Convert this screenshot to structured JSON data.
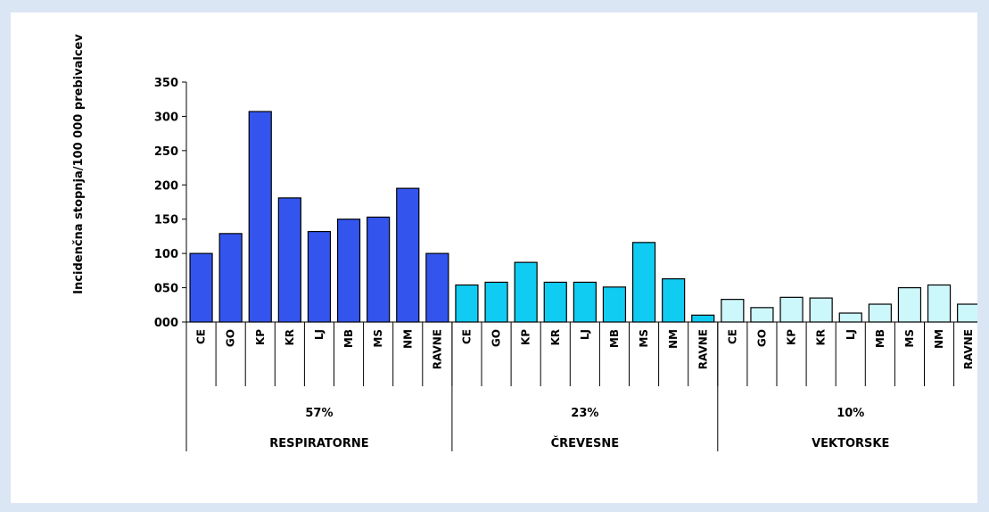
{
  "chart_data": {
    "type": "bar",
    "ylabel": "Incidenčna stopnja/100 000 prebivalcev",
    "ylim": [
      0,
      350
    ],
    "yticks": [
      "000",
      "050",
      "100",
      "150",
      "200",
      "250",
      "300",
      "350"
    ],
    "categories": [
      "CE",
      "GO",
      "KP",
      "KR",
      "LJ",
      "MB",
      "MS",
      "NM",
      "RAVNE"
    ],
    "groups": [
      {
        "name": "RESPIRATORNE",
        "percent": "57%",
        "color": "#3355ee",
        "values": [
          100,
          129,
          307,
          181,
          132,
          150,
          153,
          195,
          100
        ]
      },
      {
        "name": "ČREVESNE",
        "percent": "23%",
        "color": "#11ccf2",
        "values": [
          54,
          58,
          87,
          58,
          58,
          51,
          116,
          63,
          10
        ]
      },
      {
        "name": "VEKTORSKE",
        "percent": "10%",
        "color": "#ccf8fc",
        "values": [
          33,
          21,
          36,
          35,
          13,
          26,
          50,
          54,
          26
        ]
      }
    ]
  }
}
